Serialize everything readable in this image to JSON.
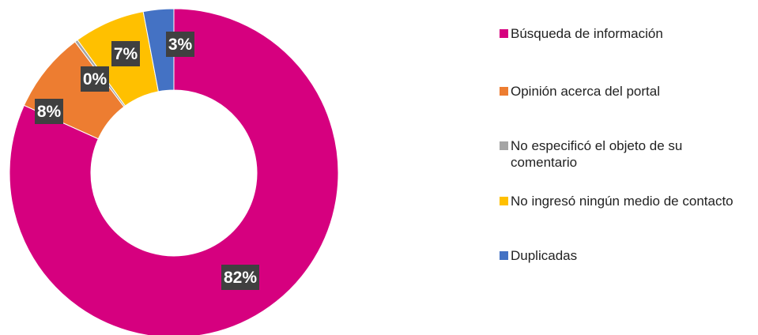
{
  "chart_data": {
    "type": "pie",
    "title": "",
    "slices": [
      {
        "label": "Búsqueda de información",
        "value": 82,
        "data_label": "82%",
        "color": "#d6007f"
      },
      {
        "label": "Opinión acerca del portal",
        "value": 8,
        "data_label": "8%",
        "color": "#ed7d31"
      },
      {
        "label": "No especificó el objeto de su comentario",
        "value": 0.3,
        "data_label": "0%",
        "color": "#a5a5a5"
      },
      {
        "label": "No ingresó ningún medio de contacto",
        "value": 7,
        "data_label": "7%",
        "color": "#ffc000"
      },
      {
        "label": "Duplicadas",
        "value": 3,
        "data_label": "3%",
        "color": "#4472c4"
      }
    ],
    "legend_placement": "right"
  }
}
